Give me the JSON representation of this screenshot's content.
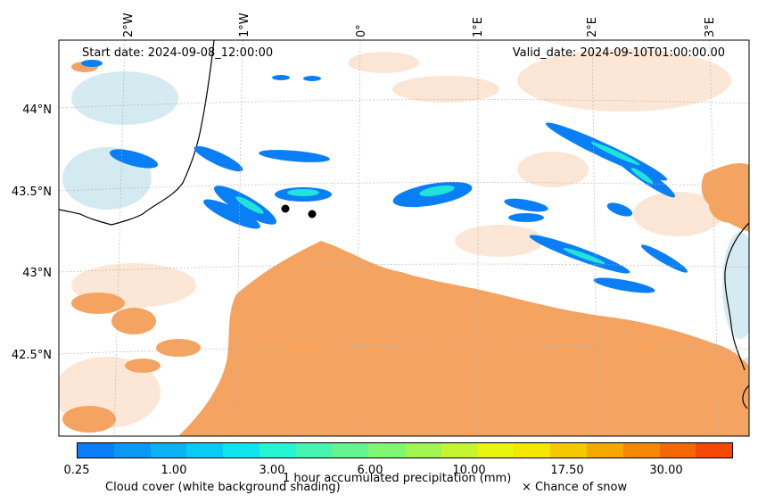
{
  "header": {
    "start_date": "Start date: 2024-09-08_12:00:00",
    "valid_date": "Valid_date: 2024-09-10T01:00:00.00"
  },
  "axes": {
    "lon_ticks": [
      "2°W",
      "1°W",
      "0°",
      "1°E",
      "2°E",
      "3°E"
    ],
    "lat_ticks": [
      "44°N",
      "43.5°N",
      "43°N",
      "42.5°N"
    ]
  },
  "colorbar": {
    "title": "1 hour accumulated precipitation (mm)",
    "tick_labels": [
      "0.25",
      "1.00",
      "3.00",
      "6.00",
      "10.00",
      "17.50",
      "30.00"
    ],
    "colors": [
      "#0a7ff5",
      "#0a98f5",
      "#0ab1f5",
      "#0acbf5",
      "#10e4f0",
      "#25f5d5",
      "#45f5b0",
      "#62f590",
      "#80f570",
      "#a0f550",
      "#c4f530",
      "#e8f510",
      "#f5e800",
      "#f5c800",
      "#f5a800",
      "#f58800",
      "#f56800",
      "#f54800"
    ]
  },
  "legend": {
    "cloud_cover": "Cloud cover (white background shading)",
    "snow": "× Chance of snow"
  },
  "colors": {
    "dry_land": "#f4a460",
    "sea": "#add8e6",
    "precip_low": "#0a7ff5",
    "precip_mid": "#25f5d5"
  }
}
